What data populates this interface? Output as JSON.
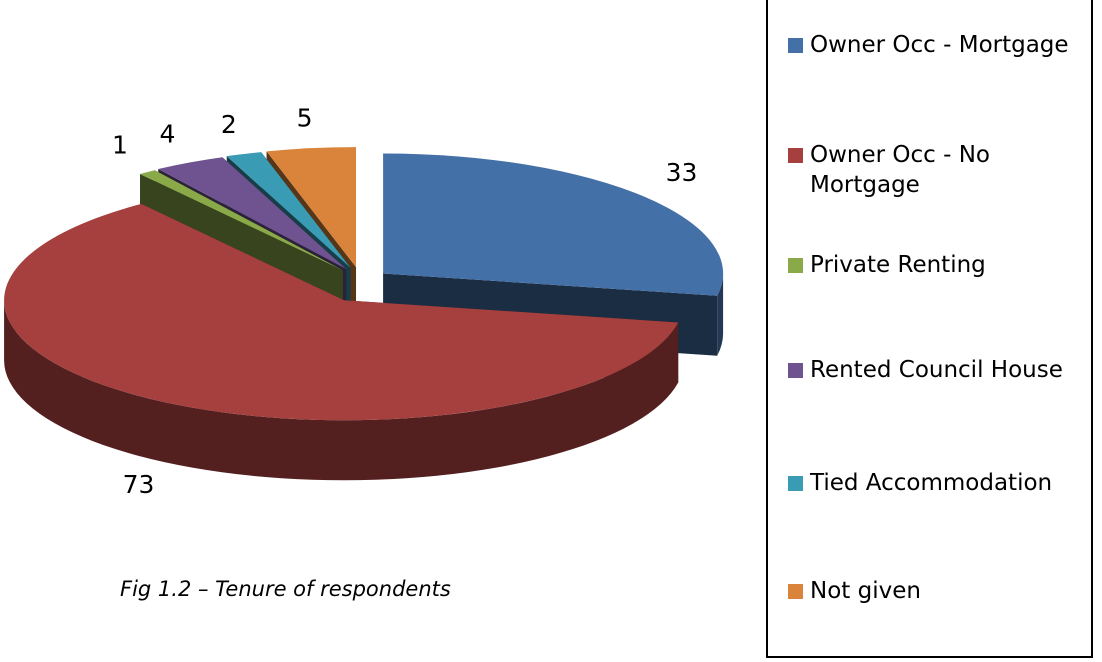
{
  "chart_data": {
    "type": "pie3d",
    "caption": "Fig 1.2 – Tenure of respondents",
    "categories": [
      "Owner Occ - Mortgage",
      "Owner Occ - No Mortgage",
      "Private Renting",
      "Rented Council House",
      "Tied Accommodation",
      "Not given"
    ],
    "values": [
      33,
      73,
      1,
      4,
      2,
      5
    ],
    "colors": [
      "#4470a8",
      "#a5403e",
      "#8aaa4a",
      "#6f5390",
      "#3a9bb5",
      "#d9843a"
    ],
    "legend": "right"
  }
}
